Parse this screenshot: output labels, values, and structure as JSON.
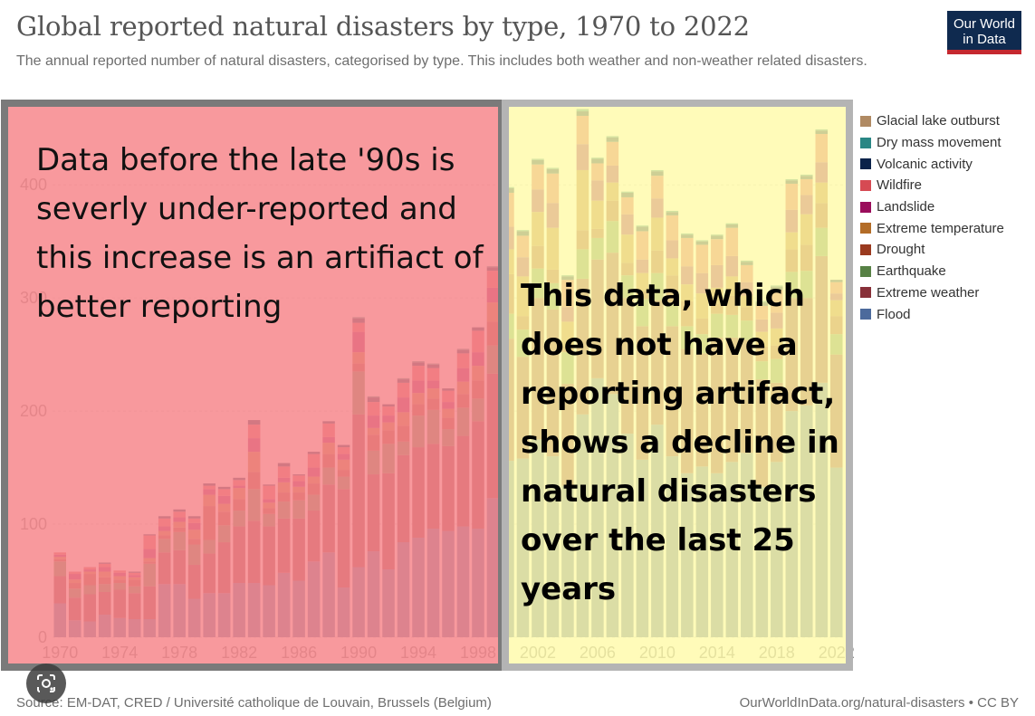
{
  "title": "Global reported natural disasters by type, 1970 to 2022",
  "subtitle": "The annual reported number of natural disasters, categorised by type. This includes both weather and non-weather related disasters.",
  "logo": {
    "line1": "Our World",
    "line2": "in Data"
  },
  "source": "Source: EM-DAT, CRED / Université catholique de Louvain, Brussels (Belgium)",
  "credit": "OurWorldInData.org/natural-disasters • CC BY",
  "annotations": {
    "left": "Data before the late '90s is severly under-reported and this increase is an artifiact of better reporting",
    "right": "This data, which does not have a reporting artifact, shows a decline in natural disasters over the last 25 years"
  },
  "colors": {
    "left_overlay": "#f7878c",
    "left_frame": "#7a7a7a",
    "right_overlay": "#fffaa8",
    "right_frame": "#b4b4b4"
  },
  "lens_icon": "google-lens-icon",
  "chart_data": {
    "type": "bar",
    "stacked": true,
    "x": [
      1970,
      1971,
      1972,
      1973,
      1974,
      1975,
      1976,
      1977,
      1978,
      1979,
      1980,
      1981,
      1982,
      1983,
      1984,
      1985,
      1986,
      1987,
      1988,
      1989,
      1990,
      1991,
      1992,
      1993,
      1994,
      1995,
      1996,
      1997,
      1998,
      1999,
      2000,
      2001,
      2002,
      2003,
      2004,
      2005,
      2006,
      2007,
      2008,
      2009,
      2010,
      2011,
      2012,
      2013,
      2014,
      2015,
      2016,
      2017,
      2018,
      2019,
      2020,
      2021,
      2022
    ],
    "x_ticks": [
      "1970",
      "1974",
      "1978",
      "1982",
      "1986",
      "1990",
      "1994",
      "1998",
      "2002",
      "2006",
      "2010",
      "2014",
      "2018",
      "2022"
    ],
    "y_ticks": [
      "0",
      "100",
      "200",
      "300",
      "400"
    ],
    "ylim": [
      0,
      470
    ],
    "grid": true,
    "legend_position": "right",
    "series": [
      {
        "name": "Flood",
        "color": "#4c6a9c",
        "values": [
          30,
          15,
          14,
          20,
          17,
          16,
          16,
          47,
          47,
          34,
          39,
          39,
          48,
          48,
          46,
          57,
          50,
          67,
          75,
          44,
          62,
          76,
          60,
          84,
          88,
          96,
          94,
          98,
          96,
          123,
          156,
          158,
          175,
          160,
          134,
          197,
          229,
          215,
          180,
          157,
          188,
          160,
          145,
          151,
          145,
          155,
          163,
          133,
          155,
          200,
          205,
          225,
          150
        ]
      },
      {
        "name": "Extreme weather",
        "color": "#883039",
        "values": [
          24,
          20,
          24,
          20,
          25,
          23,
          29,
          28,
          30,
          30,
          35,
          45,
          50,
          55,
          52,
          48,
          55,
          45,
          60,
          87,
          135,
          68,
          85,
          77,
          80,
          75,
          75,
          80,
          95,
          110,
          108,
          90,
          125,
          130,
          90,
          120,
          105,
          125,
          120,
          118,
          110,
          115,
          110,
          100,
          120,
          110,
          100,
          95,
          70,
          100,
          95,
          112,
          100
        ]
      },
      {
        "name": "Earthquake",
        "color": "#578145",
        "values": [
          13,
          8,
          8,
          7,
          6,
          6,
          20,
          12,
          16,
          18,
          12,
          15,
          14,
          28,
          11,
          15,
          16,
          14,
          15,
          11,
          38,
          21,
          26,
          12,
          28,
          30,
          15,
          25,
          20,
          25,
          22,
          24,
          26,
          23,
          28,
          26,
          19,
          28,
          20,
          24,
          24,
          21,
          20,
          17,
          21,
          20,
          17,
          16,
          21,
          23,
          24,
          25,
          18
        ]
      },
      {
        "name": "Drought",
        "color": "#9a3a1f",
        "values": [
          2,
          5,
          10,
          6,
          3,
          6,
          2,
          3,
          4,
          5,
          30,
          12,
          10,
          15,
          5,
          8,
          7,
          10,
          12,
          6,
          7,
          14,
          12,
          14,
          10,
          10,
          10,
          12,
          16,
          21,
          35,
          12,
          20,
          12,
          5,
          17,
          8,
          18,
          11,
          7,
          20,
          24,
          22,
          14,
          9,
          17,
          12,
          13,
          12,
          20,
          23,
          22,
          16
        ]
      },
      {
        "name": "Extreme temperature",
        "color": "#b36c27",
        "values": [
          2,
          3,
          2,
          5,
          3,
          2,
          3,
          4,
          5,
          8,
          10,
          7,
          10,
          18,
          5,
          9,
          5,
          6,
          10,
          9,
          10,
          6,
          7,
          12,
          10,
          9,
          8,
          11,
          13,
          17,
          22,
          35,
          30,
          37,
          22,
          53,
          25,
          16,
          25,
          16,
          29,
          15,
          15,
          22,
          14,
          17,
          10,
          13,
          15,
          15,
          27,
          18,
          14
        ]
      },
      {
        "name": "Landslide",
        "color": "#9a0d5b",
        "values": [
          2,
          5,
          2,
          4,
          3,
          2,
          8,
          4,
          4,
          6,
          5,
          7,
          2,
          12,
          3,
          4,
          5,
          8,
          5,
          5,
          18,
          11,
          6,
          13,
          11,
          7,
          6,
          12,
          12,
          13,
          20,
          17,
          20,
          22,
          13,
          23,
          18,
          15,
          18,
          12,
          17,
          16,
          16,
          18,
          20,
          18,
          12,
          11,
          14,
          20,
          17,
          18,
          6
        ]
      },
      {
        "name": "Wildfire",
        "color": "#d64a53",
        "values": [
          2,
          2,
          2,
          3,
          2,
          2,
          12,
          7,
          5,
          4,
          3,
          6,
          5,
          12,
          12,
          10,
          5,
          12,
          12,
          6,
          8,
          12,
          8,
          13,
          13,
          11,
          10,
          13,
          19,
          15,
          30,
          19,
          22,
          26,
          24,
          25,
          15,
          21,
          15,
          25,
          20,
          22,
          25,
          25,
          23,
          25,
          15,
          12,
          20,
          23,
          14,
          25,
          10
        ]
      },
      {
        "name": "Volcanic activity",
        "color": "#0b234a",
        "values": [
          0,
          0,
          0,
          1,
          0,
          1,
          1,
          2,
          2,
          2,
          2,
          2,
          2,
          4,
          1,
          3,
          1,
          2,
          2,
          2,
          4,
          4,
          2,
          3,
          3,
          3,
          2,
          3,
          3,
          3,
          4,
          4,
          4,
          4,
          3,
          4,
          4,
          4,
          4,
          4,
          4,
          3,
          3,
          3,
          3,
          3,
          3,
          3,
          3,
          3,
          3,
          3,
          2
        ]
      },
      {
        "name": "Dry mass movement",
        "color": "#2a8785",
        "values": [
          0,
          0,
          0,
          0,
          0,
          0,
          0,
          0,
          0,
          0,
          0,
          0,
          0,
          0,
          0,
          0,
          0,
          0,
          0,
          0,
          1,
          1,
          0,
          1,
          1,
          1,
          0,
          1,
          0,
          1,
          1,
          1,
          1,
          1,
          1,
          2,
          1,
          1,
          1,
          1,
          1,
          1,
          1,
          1,
          1,
          1,
          1,
          1,
          1,
          1,
          1,
          1,
          0
        ]
      },
      {
        "name": "Glacial lake outburst",
        "color": "#b08a63",
        "values": [
          0,
          0,
          0,
          0,
          0,
          0,
          0,
          0,
          0,
          0,
          0,
          0,
          0,
          0,
          0,
          0,
          0,
          0,
          0,
          0,
          0,
          0,
          0,
          0,
          0,
          0,
          0,
          0,
          0,
          0,
          0,
          0,
          0,
          0,
          0,
          0,
          0,
          0,
          0,
          0,
          0,
          0,
          0,
          0,
          0,
          0,
          0,
          0,
          0,
          0,
          0,
          0,
          0
        ]
      }
    ]
  }
}
